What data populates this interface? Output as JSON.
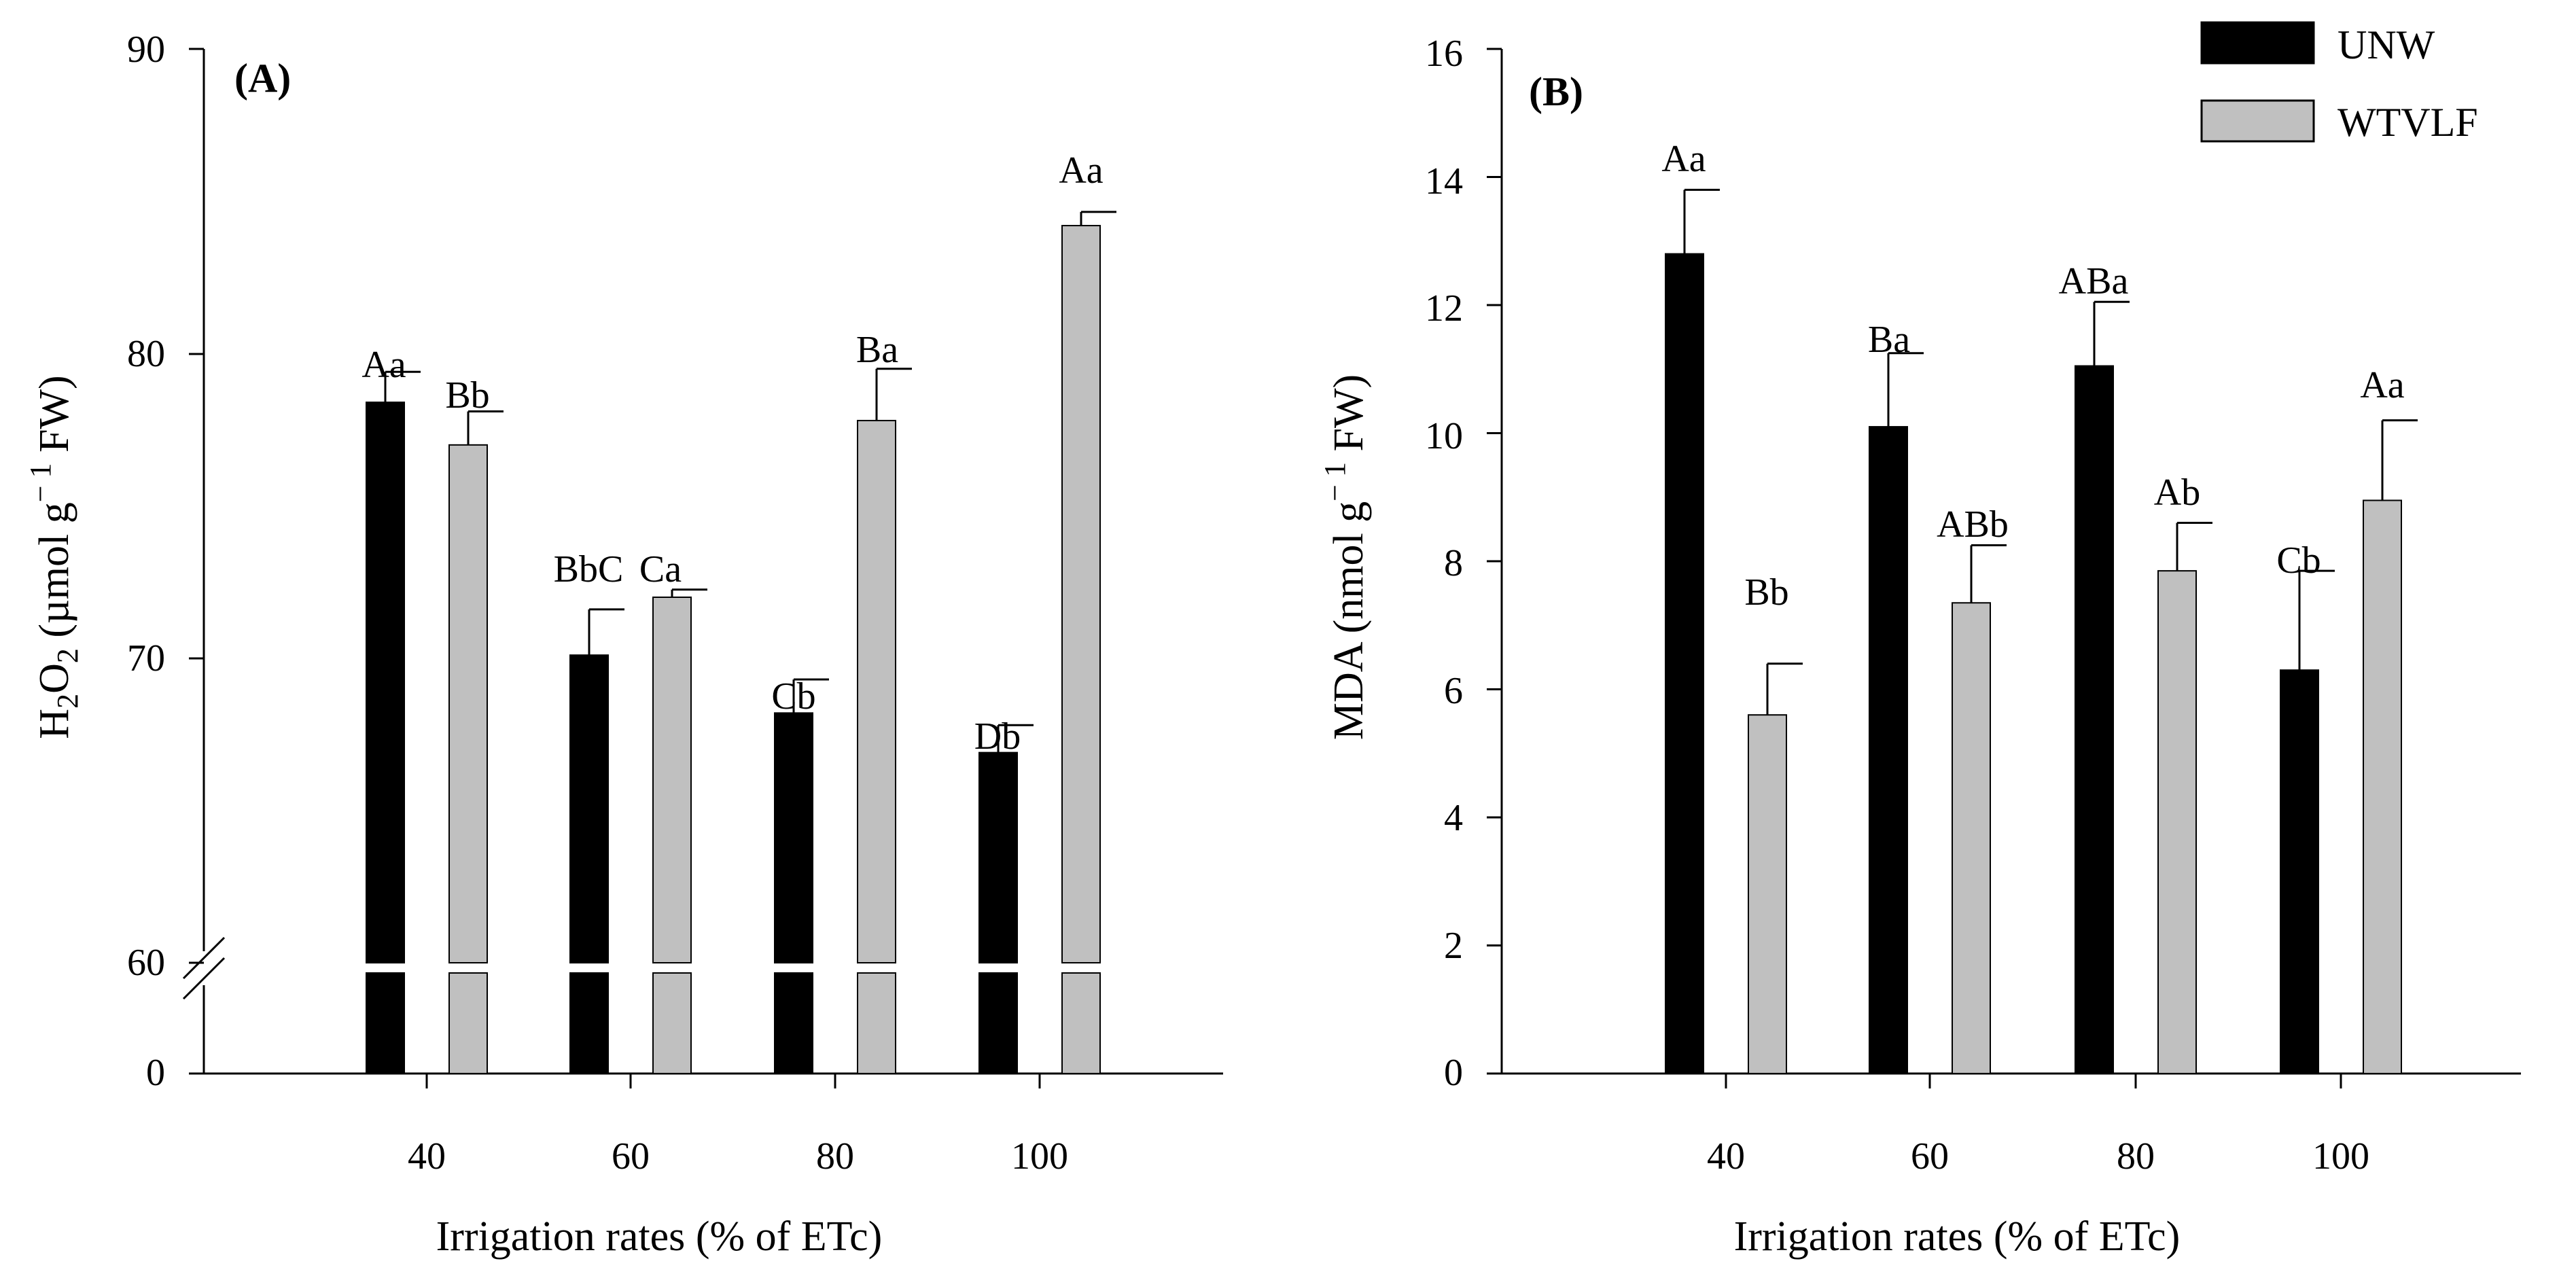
{
  "chart_data": [
    {
      "panel": "(A)",
      "type": "bar",
      "title": "",
      "xlabel": "Irrigation rates (% of ETc)",
      "ylabel": "H2O2 (µmol g⁻¹ FW)",
      "ylabel_parts": {
        "prefix": "H",
        "sub1": "2",
        "mid": "O",
        "sub2": "2",
        "unit_open": " (µmol g",
        "sup": "− 1",
        "unit_close": " FW)"
      },
      "categories": [
        "40",
        "60",
        "80",
        "100"
      ],
      "axis_break": {
        "lower_segment": [
          0,
          60
        ],
        "upper_segment": [
          60,
          90
        ]
      },
      "yticks": [
        "0",
        "60",
        "70",
        "80",
        "90"
      ],
      "ylim": [
        0,
        90
      ],
      "series": [
        {
          "name": "UNW",
          "color": "#000000",
          "values": [
            78.4,
            70.1,
            68.2,
            66.9
          ],
          "errors": [
            1.0,
            1.5,
            1.1,
            0.9
          ],
          "labels": [
            "Aa",
            "BbC",
            "Cb",
            "Db"
          ]
        },
        {
          "name": "WTVLF",
          "color": "#c0c0c0",
          "values": [
            77.0,
            72.0,
            77.8,
            84.2
          ],
          "errors": [
            1.1,
            0.25,
            1.7,
            0.45
          ],
          "labels": [
            "Bb",
            "Ca",
            "Ba",
            "Aa"
          ]
        }
      ]
    },
    {
      "panel": "(B)",
      "type": "bar",
      "title": "",
      "xlabel": "Irrigation rates (% of ETc)",
      "ylabel": "MDA (nmol g⁻¹ FW)",
      "ylabel_parts": {
        "prefix": "MDA (nmol g",
        "sup": "− 1",
        "unit_close": " FW)"
      },
      "categories": [
        "40",
        "60",
        "80",
        "100"
      ],
      "yticks": [
        "0",
        "2",
        "4",
        "6",
        "8",
        "10",
        "12",
        "14",
        "16"
      ],
      "ylim": [
        0,
        16
      ],
      "series": [
        {
          "name": "UNW",
          "color": "#000000",
          "values": [
            12.8,
            10.1,
            11.05,
            6.3
          ],
          "errors": [
            1.0,
            1.15,
            1.0,
            1.55
          ],
          "labels": [
            "Aa",
            "Ba",
            "ABa",
            "Cb"
          ]
        },
        {
          "name": "WTVLF",
          "color": "#c0c0c0",
          "values": [
            5.6,
            7.35,
            7.85,
            8.95
          ],
          "errors": [
            0.8,
            0.9,
            0.75,
            1.25
          ],
          "labels": [
            "Bb",
            "ABb",
            "Ab",
            "Aa"
          ]
        }
      ],
      "legend": {
        "position": "top-right",
        "entries": [
          "UNW",
          "WTVLF"
        ]
      }
    }
  ]
}
